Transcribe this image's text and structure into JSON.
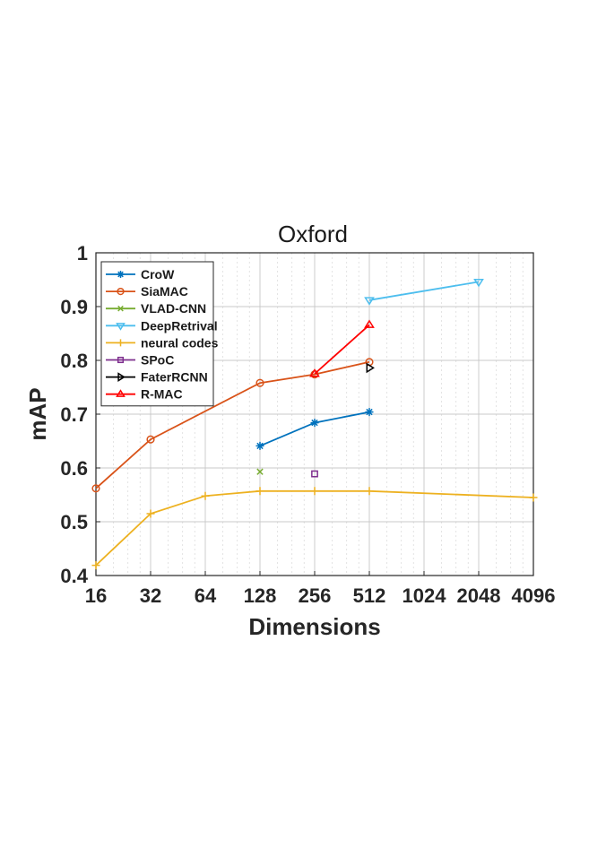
{
  "chart_data": {
    "type": "line",
    "title": "Oxford",
    "xlabel": "Dimensions",
    "ylabel": "mAP",
    "x_scale": "log2",
    "xlim": [
      16,
      4096
    ],
    "ylim": [
      0.4,
      1.0
    ],
    "x_ticks": [
      "16",
      "32",
      "64",
      "128",
      "256",
      "512",
      "1024",
      "2048",
      "4096"
    ],
    "y_ticks": [
      "0.4",
      "0.5",
      "0.6",
      "0.7",
      "0.8",
      "0.9",
      "1"
    ],
    "grid": true,
    "legend_position": "top-left",
    "series": [
      {
        "name": "CroW",
        "color": "#0072BD",
        "marker": "asterisk",
        "x": [
          128,
          256,
          512
        ],
        "y": [
          0.641,
          0.684,
          0.704
        ]
      },
      {
        "name": "SiaMAC",
        "color": "#D95319",
        "marker": "circle",
        "x": [
          16,
          32,
          128,
          256,
          512
        ],
        "y": [
          0.562,
          0.653,
          0.758,
          0.774,
          0.797
        ]
      },
      {
        "name": "VLAD-CNN",
        "color": "#77AC30",
        "marker": "x",
        "x": [
          128
        ],
        "y": [
          0.593
        ]
      },
      {
        "name": "DeepRetrival",
        "color": "#4DBEEE",
        "marker": "triangle-down",
        "x": [
          512,
          2048
        ],
        "y": [
          0.912,
          0.946
        ]
      },
      {
        "name": "neural codes",
        "color": "#EDB120",
        "marker": "plus",
        "x": [
          16,
          32,
          64,
          128,
          256,
          512,
          4096
        ],
        "y": [
          0.419,
          0.515,
          0.548,
          0.557,
          0.557,
          0.557,
          0.545
        ]
      },
      {
        "name": "SPoC",
        "color": "#7E2F8E",
        "marker": "square",
        "x": [
          256
        ],
        "y": [
          0.589
        ]
      },
      {
        "name": "FaterRCNN",
        "color": "#000000",
        "marker": "triangle-right",
        "x": [
          512
        ],
        "y": [
          0.786
        ]
      },
      {
        "name": "R-MAC",
        "color": "#FF0000",
        "marker": "triangle-up",
        "x": [
          256,
          512
        ],
        "y": [
          0.775,
          0.866
        ]
      }
    ]
  }
}
